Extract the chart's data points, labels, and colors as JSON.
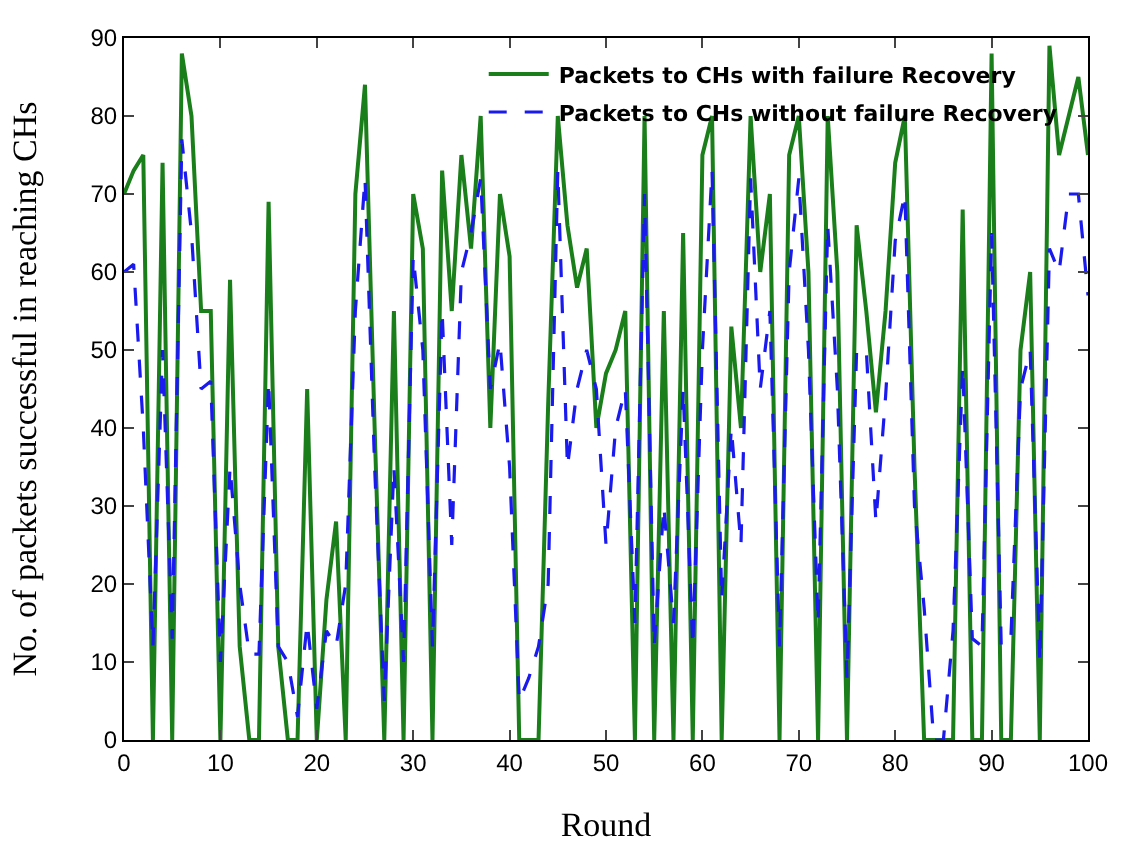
{
  "chart_data": {
    "type": "line",
    "xlabel": "Round",
    "ylabel": "No. of packets successful in reaching CHs",
    "x": [
      0,
      1,
      2,
      3,
      4,
      5,
      6,
      7,
      8,
      9,
      10,
      11,
      12,
      13,
      14,
      15,
      16,
      17,
      18,
      19,
      20,
      21,
      22,
      23,
      24,
      25,
      26,
      27,
      28,
      29,
      30,
      31,
      32,
      33,
      34,
      35,
      36,
      37,
      38,
      39,
      40,
      41,
      42,
      43,
      44,
      45,
      46,
      47,
      48,
      49,
      50,
      51,
      52,
      53,
      54,
      55,
      56,
      57,
      58,
      59,
      60,
      61,
      62,
      63,
      64,
      65,
      66,
      67,
      68,
      69,
      70,
      71,
      72,
      73,
      74,
      75,
      76,
      77,
      78,
      79,
      80,
      81,
      82,
      83,
      84,
      85,
      86,
      87,
      88,
      89,
      90,
      91,
      92,
      93,
      94,
      95,
      96,
      97,
      98,
      99,
      100
    ],
    "series": [
      {
        "name": "Packets to CHs with failure Recovery",
        "color": "#1a7f1a",
        "line_style": "solid",
        "values": [
          70,
          73,
          75,
          0,
          74,
          0,
          88,
          80,
          55,
          55,
          0,
          59,
          12,
          0,
          0,
          69,
          12,
          0,
          0,
          45,
          0,
          18,
          28,
          0,
          70,
          84,
          40,
          0,
          55,
          0,
          70,
          63,
          0,
          73,
          55,
          75,
          63,
          80,
          40,
          70,
          62,
          0,
          0,
          0,
          43,
          80,
          66,
          58,
          63,
          40,
          47,
          50,
          55,
          0,
          80,
          0,
          55,
          0,
          65,
          0,
          75,
          80,
          0,
          53,
          40,
          80,
          60,
          70,
          0,
          75,
          80,
          60,
          0,
          80,
          60,
          0,
          66,
          55,
          42,
          55,
          74,
          80,
          35,
          0,
          0,
          0,
          0,
          68,
          0,
          0,
          88,
          0,
          0,
          50,
          60,
          0,
          89,
          75,
          80,
          85,
          75
        ]
      },
      {
        "name": "Packets to CHs without failure Recovery",
        "color": "#1a1aee",
        "line_style": "dashed",
        "values": [
          60,
          61,
          40,
          12,
          50,
          13,
          77,
          65,
          45,
          46,
          10,
          35,
          20,
          11,
          11,
          46,
          12,
          10,
          3,
          15,
          4,
          14,
          12,
          20,
          55,
          72,
          35,
          5,
          35,
          10,
          62,
          50,
          12,
          55,
          25,
          60,
          65,
          72,
          45,
          51,
          35,
          5,
          8,
          12,
          20,
          73,
          35,
          45,
          50,
          45,
          25,
          40,
          45,
          15,
          70,
          12,
          30,
          15,
          45,
          12,
          50,
          73,
          18,
          40,
          25,
          72,
          45,
          55,
          12,
          60,
          72,
          50,
          15,
          66,
          45,
          8,
          50,
          50,
          28,
          44,
          64,
          70,
          30,
          17,
          0,
          0,
          14,
          48,
          13,
          12,
          65,
          12,
          13,
          45,
          50,
          10,
          63,
          60,
          70,
          70,
          57
        ]
      }
    ],
    "xlim": [
      0,
      100
    ],
    "ylim": [
      0,
      90
    ],
    "xticks": [
      0,
      10,
      20,
      30,
      40,
      50,
      60,
      70,
      80,
      90,
      100
    ],
    "yticks": [
      0,
      10,
      20,
      30,
      40,
      50,
      60,
      70,
      80,
      90
    ],
    "grid": false,
    "legend": "top right",
    "marker": "none"
  }
}
